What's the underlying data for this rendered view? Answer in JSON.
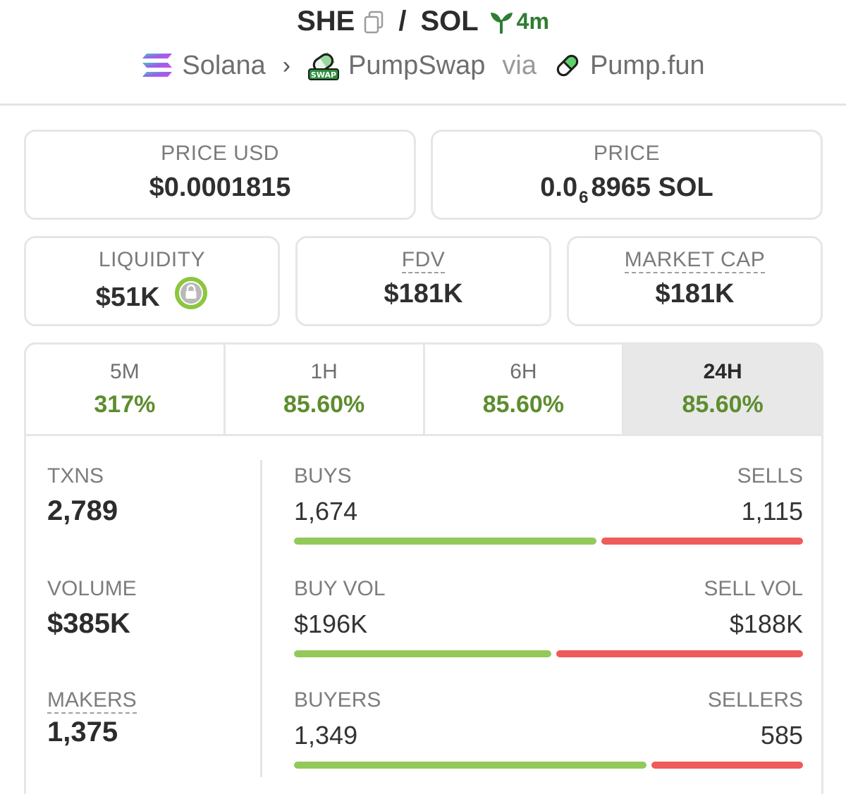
{
  "header": {
    "token": "SHE",
    "slash": "/",
    "quote": "SOL",
    "age": "4m",
    "chain": "Solana",
    "chevron": "›",
    "dex": "PumpSwap",
    "via": "via",
    "launchpad": "Pump.fun",
    "swap_badge_text": "SWAP"
  },
  "price_usd": {
    "label": "PRICE USD",
    "value": "$0.0001815"
  },
  "price_native": {
    "label": "PRICE",
    "prefix": "0.0",
    "zeros": "6",
    "digits": "8965",
    "unit": "SOL"
  },
  "liquidity": {
    "label": "LIQUIDITY",
    "value": "$51K"
  },
  "fdv": {
    "label": "FDV",
    "value": "$181K"
  },
  "market_cap": {
    "label": "MARKET CAP",
    "value": "$181K"
  },
  "timeframes": [
    {
      "label": "5M",
      "change": "317%"
    },
    {
      "label": "1H",
      "change": "85.60%"
    },
    {
      "label": "6H",
      "change": "85.60%"
    },
    {
      "label": "24H",
      "change": "85.60%",
      "active": true
    }
  ],
  "stats": {
    "txns": {
      "label": "TXNS",
      "value": "2,789"
    },
    "volume": {
      "label": "VOLUME",
      "value": "$385K"
    },
    "makers": {
      "label": "MAKERS",
      "value": "1,375"
    }
  },
  "splits": {
    "txns": {
      "left_label": "BUYS",
      "left_value": "1,674",
      "right_label": "SELLS",
      "right_value": "1,115",
      "buy_share": 0.6
    },
    "volume": {
      "left_label": "BUY VOL",
      "left_value": "$196K",
      "right_label": "SELL VOL",
      "right_value": "$188K",
      "buy_share": 0.51
    },
    "makers": {
      "left_label": "BUYERS",
      "left_value": "1,349",
      "right_label": "SELLERS",
      "right_value": "585",
      "buy_share": 0.7
    }
  },
  "colors": {
    "buy": "#93c85b",
    "sell": "#ef5b5b",
    "positive": "#5d8d2e",
    "age": "#2e7d32"
  },
  "icons": [
    "copy-icon",
    "sprout-icon",
    "solana-logo",
    "pumpswap-logo",
    "pumpfun-pill-icon",
    "lock-icon"
  ]
}
